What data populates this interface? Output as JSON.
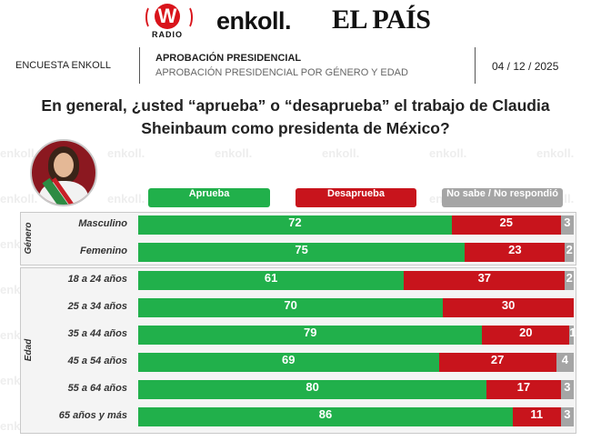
{
  "logos": {
    "w_radio_mark": "W",
    "w_radio_text": "RADIO",
    "enkoll": "enkoll.",
    "el_pais": "EL PAÍS"
  },
  "header": {
    "left": "ENCUESTA ENKOLL",
    "title": "APROBACIÓN PRESIDENCIAL",
    "subtitle": "APROBACIÓN PRESIDENCIAL POR GÉNERO Y EDAD",
    "date": "04 / 12 / 2025"
  },
  "watermark_text": "enkoll.",
  "colors": {
    "aprueba": "#21b04b",
    "desaprueba": "#c8141c",
    "no_sabe": "#a5a5a5"
  },
  "chart_data": {
    "type": "bar",
    "orientation": "horizontal",
    "stacked": true,
    "title": "En general, ¿usted “aprueba” o “desaprueba” el trabajo de Claudia Sheinbaum como presidenta de México?",
    "legend": [
      "Aprueba",
      "Desaprueba",
      "No sabe / No respondió"
    ],
    "legend_position": "top",
    "groups": [
      {
        "name": "Género",
        "categories": [
          "Masculino",
          "Femenino"
        ],
        "series": [
          {
            "name": "Aprueba",
            "values": [
              72,
              75
            ]
          },
          {
            "name": "Desaprueba",
            "values": [
              25,
              23
            ]
          },
          {
            "name": "No sabe / No respondió",
            "values": [
              3,
              2
            ]
          }
        ]
      },
      {
        "name": "Edad",
        "categories": [
          "18 a 24 años",
          "25 a 34 años",
          "35 a 44 años",
          "45 a 54 años",
          "55 a 64 años",
          "65 años y más"
        ],
        "series": [
          {
            "name": "Aprueba",
            "values": [
              61,
              70,
              79,
              69,
              80,
              86
            ]
          },
          {
            "name": "Desaprueba",
            "values": [
              37,
              30,
              20,
              27,
              17,
              11
            ]
          },
          {
            "name": "No sabe / No respondió",
            "values": [
              2,
              0,
              1,
              4,
              3,
              3
            ]
          }
        ]
      }
    ],
    "xlim": [
      0,
      100
    ]
  }
}
